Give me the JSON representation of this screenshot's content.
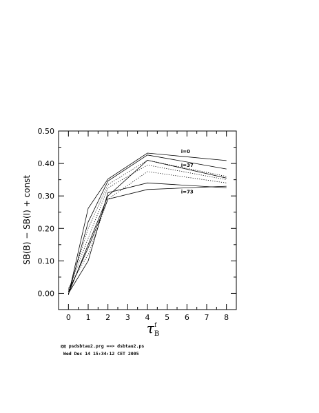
{
  "chart_data": {
    "type": "line",
    "xlabel": "τ",
    "xlabel_sub": "B",
    "xlabel_sup": "f",
    "ylabel": "SB(B)  − SB(I)  + const",
    "xlim": [
      -0.5,
      8.5
    ],
    "ylim": [
      -0.05,
      0.5
    ],
    "xticks": [
      "0",
      "1",
      "2",
      "3",
      "4",
      "5",
      "6",
      "7",
      "8"
    ],
    "yticks": [
      "0.00",
      "0.10",
      "0.20",
      "0.30",
      "0.40",
      "0.50"
    ],
    "x": [
      0,
      1,
      2,
      4,
      8
    ],
    "grid": false,
    "series": [
      {
        "style": "solid",
        "values": [
          -0.005,
          0.262,
          0.352,
          0.432,
          0.409
        ]
      },
      {
        "style": "solid",
        "values": [
          -0.003,
          0.22,
          0.346,
          0.426,
          0.383
        ]
      },
      {
        "style": "dotted",
        "values": [
          0.005,
          0.2,
          0.335,
          0.41,
          0.36
        ]
      },
      {
        "style": "dotted",
        "values": [
          0.01,
          0.17,
          0.325,
          0.395,
          0.35
        ]
      },
      {
        "style": "solid",
        "values": [
          -0.002,
          0.15,
          0.3,
          0.41,
          0.355
        ]
      },
      {
        "style": "dotted",
        "values": [
          0.015,
          0.12,
          0.29,
          0.375,
          0.34
        ]
      },
      {
        "style": "solid",
        "values": [
          0.0,
          0.1,
          0.31,
          0.34,
          0.325
        ]
      },
      {
        "style": "solid",
        "values": [
          0.005,
          0.14,
          0.29,
          0.32,
          0.33
        ]
      }
    ],
    "annotations": [
      {
        "text": "i=0",
        "x": 5.7,
        "y": 0.432
      },
      {
        "text": "i=37",
        "x": 5.7,
        "y": 0.39
      },
      {
        "text": "i=73",
        "x": 5.7,
        "y": 0.308
      }
    ]
  },
  "footer": {
    "line1": "@@ psdsbtau2.prg ==> dsbtau2.ps",
    "line2": " Wed Dec 14 15:34:12 CET 2005"
  }
}
